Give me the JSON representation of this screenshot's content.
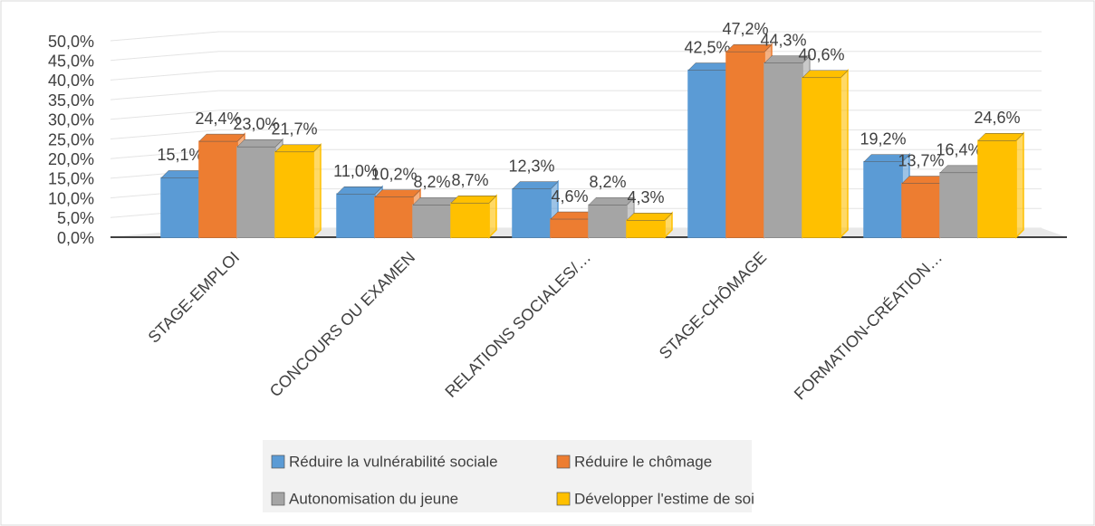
{
  "chart_data": {
    "type": "bar3d",
    "categories": [
      "STAGE-EMPLOI",
      "CONCOURS OU EXAMEN",
      "RELATIONS SOCIALES/…",
      "STAGE-CHÔMAGE",
      "FORMATION-CRÉATION…"
    ],
    "series": [
      {
        "name": "Réduire la vulnérabilité sociale",
        "color": "#5b9bd5",
        "values": [
          15.1,
          11.0,
          12.3,
          42.5,
          19.2
        ],
        "value_labels": [
          "15,1%",
          "11,0%",
          "12,3%",
          "42,5%",
          "19,2%"
        ]
      },
      {
        "name": "Réduire le chômage",
        "color": "#ed7d31",
        "values": [
          24.4,
          10.2,
          4.6,
          47.2,
          13.7
        ],
        "value_labels": [
          "24,4%",
          "10,2%",
          "4,6%",
          "47,2%",
          "13,7%"
        ]
      },
      {
        "name": "Autonomisation du jeune",
        "color": "#a5a5a5",
        "values": [
          23.0,
          8.2,
          8.2,
          44.3,
          16.4
        ],
        "value_labels": [
          "23,0%",
          "8,2%",
          "8,2%",
          "44,3%",
          "16,4%"
        ]
      },
      {
        "name": "Développer l'estime de soi",
        "color": "#ffc000",
        "values": [
          21.7,
          8.7,
          4.3,
          40.6,
          24.6
        ],
        "value_labels": [
          "21,7%",
          "8,7%",
          "4,3%",
          "40,6%",
          "24,6%"
        ]
      }
    ],
    "ylim": [
      0,
      50
    ],
    "yticks": [
      {
        "value": 0,
        "label": "0,0%"
      },
      {
        "value": 5,
        "label": "5,0%"
      },
      {
        "value": 10,
        "label": "10,0%"
      },
      {
        "value": 15,
        "label": "15,0%"
      },
      {
        "value": 20,
        "label": "20,0%"
      },
      {
        "value": 25,
        "label": "25,0%"
      },
      {
        "value": 30,
        "label": "30,0%"
      },
      {
        "value": 35,
        "label": "35,0%"
      },
      {
        "value": 40,
        "label": "40,0%"
      },
      {
        "value": 45,
        "label": "45,0%"
      },
      {
        "value": 50,
        "label": "50,0%"
      }
    ],
    "grid": true,
    "legend": "bottom"
  }
}
